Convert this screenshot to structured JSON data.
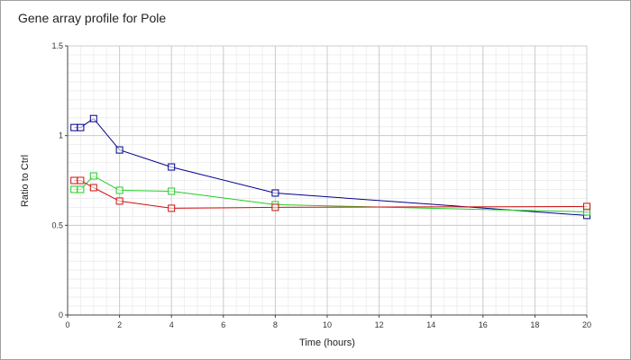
{
  "chart_data": {
    "type": "line",
    "title": "Gene array profile for Pole",
    "xlabel": "Time (hours)",
    "ylabel": "Ratio to Ctrl",
    "xlim": [
      0,
      20
    ],
    "ylim": [
      0,
      1.5
    ],
    "x_ticks": [
      0,
      2,
      4,
      6,
      8,
      10,
      12,
      14,
      16,
      18,
      20
    ],
    "x_tick_labels": [
      "0",
      "2",
      "4",
      "6",
      "8",
      "10",
      "12",
      "14",
      "16",
      "18",
      "20"
    ],
    "y_ticks": [
      0,
      0.5,
      1,
      1.5
    ],
    "y_tick_labels": [
      "0",
      "0.5",
      "1",
      "1.5"
    ],
    "grid": true,
    "legend": "none",
    "series": [
      {
        "color": "#00008b",
        "points": [
          [
            0.25,
            1.045
          ],
          [
            0.5,
            1.045
          ],
          [
            1,
            1.095
          ],
          [
            2,
            0.92
          ],
          [
            4,
            0.825
          ],
          [
            8,
            0.68
          ],
          [
            20,
            0.555
          ]
        ]
      },
      {
        "color": "#22cc22",
        "points": [
          [
            0.25,
            0.7
          ],
          [
            0.5,
            0.7
          ],
          [
            1,
            0.775
          ],
          [
            2,
            0.695
          ],
          [
            4,
            0.69
          ],
          [
            8,
            0.615
          ],
          [
            20,
            0.575
          ]
        ]
      },
      {
        "color": "#cc1111",
        "points": [
          [
            0.25,
            0.75
          ],
          [
            0.5,
            0.75
          ],
          [
            1,
            0.71
          ],
          [
            2,
            0.635
          ],
          [
            4,
            0.595
          ],
          [
            8,
            0.6
          ],
          [
            20,
            0.605
          ]
        ]
      }
    ]
  }
}
